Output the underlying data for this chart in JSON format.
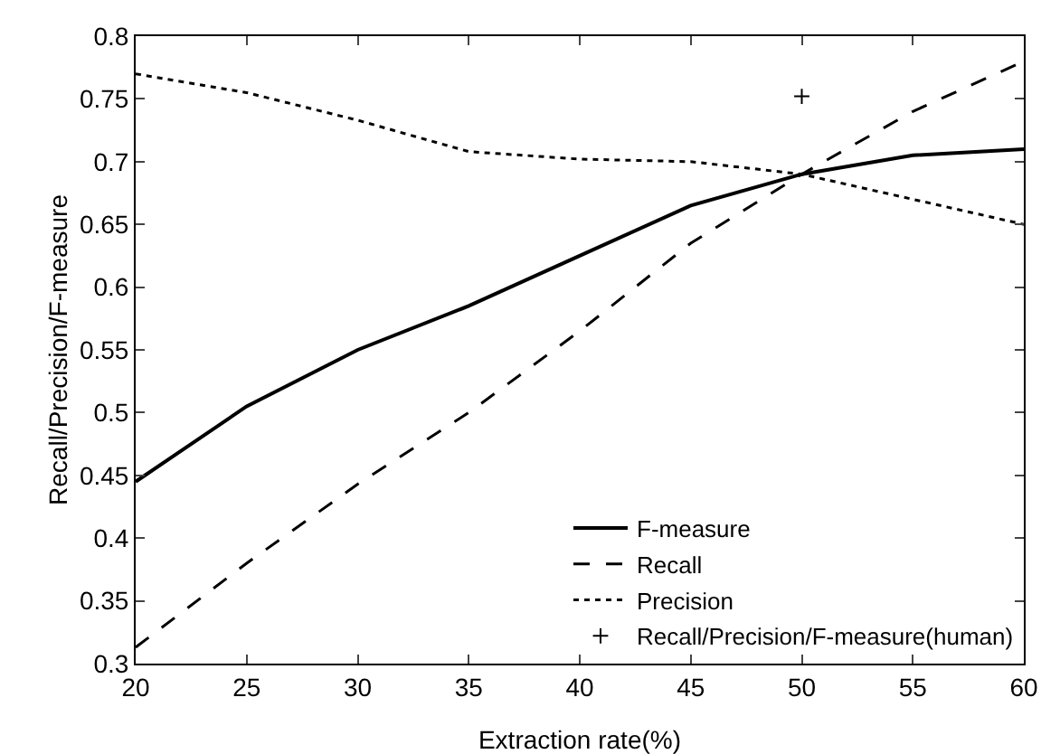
{
  "chart_data": {
    "type": "line",
    "xlabel": "Extraction rate(%)",
    "ylabel": "Recall/Precision/F-measure",
    "x": [
      20,
      25,
      30,
      35,
      40,
      45,
      50,
      55,
      60
    ],
    "series": [
      {
        "name": "F-measure",
        "color": "#000000",
        "line_style": "solid",
        "values": [
          0.445,
          0.505,
          0.55,
          0.585,
          0.625,
          0.665,
          0.69,
          0.705,
          0.71
        ]
      },
      {
        "name": "Recall",
        "color": "#000000",
        "line_style": "dashed",
        "values": [
          0.313,
          0.38,
          0.443,
          0.5,
          0.565,
          0.635,
          0.69,
          0.74,
          0.78
        ]
      },
      {
        "name": "Precision",
        "color": "#000000",
        "line_style": "dotted",
        "values": [
          0.77,
          0.755,
          0.733,
          0.708,
          0.702,
          0.7,
          0.69,
          0.67,
          0.65
        ]
      },
      {
        "name": "Recall/Precision/F-measure(human)",
        "type": "scatter",
        "marker": "cross",
        "color": "#000000",
        "x": [
          50
        ],
        "values": [
          0.752
        ]
      }
    ],
    "xlim": [
      20,
      60
    ],
    "xticks": [
      20,
      25,
      30,
      35,
      40,
      45,
      50,
      55,
      60
    ],
    "ylim": [
      0.3,
      0.8
    ],
    "yticks": [
      0.3,
      0.35,
      0.4,
      0.45,
      0.5,
      0.55,
      0.6,
      0.65,
      0.7,
      0.75,
      0.8
    ],
    "grid": false,
    "legend": "bottom right"
  }
}
